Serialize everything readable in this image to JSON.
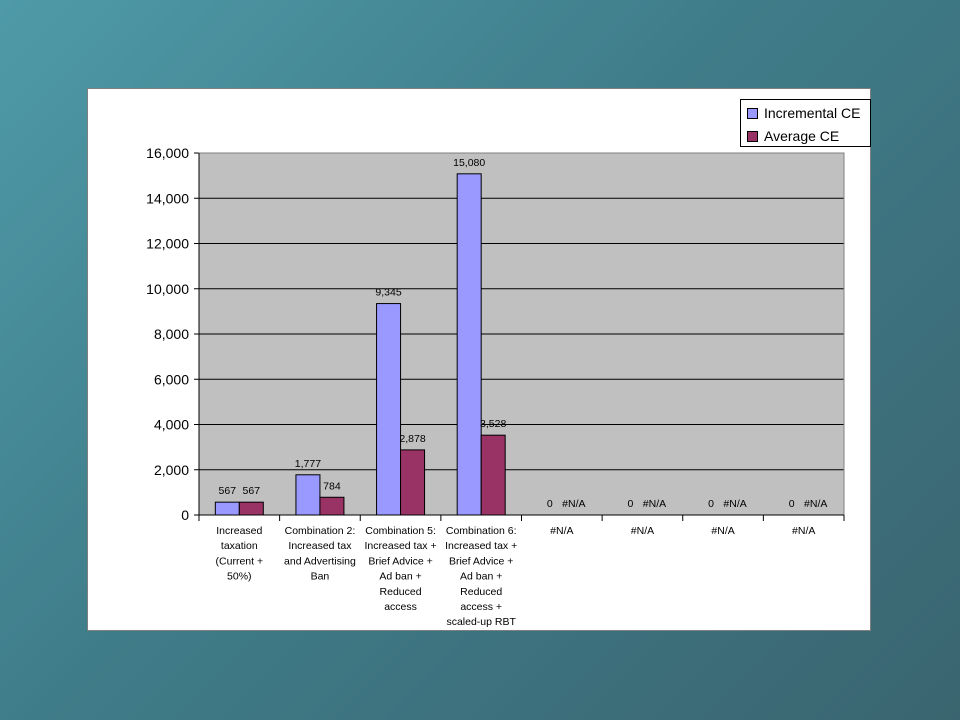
{
  "chart_data": {
    "type": "bar",
    "categories": [
      [
        "Increased",
        "taxation",
        "(Current +",
        "50%)"
      ],
      [
        "Combination 2:",
        "Increased tax",
        "and Advertising",
        "Ban"
      ],
      [
        "Combination 5:",
        "Increased tax +",
        "Brief Advice +",
        "Ad ban +",
        "Reduced",
        "access"
      ],
      [
        "Combination 6:",
        "Increased tax +",
        "Brief Advice +",
        "Ad ban +",
        "Reduced",
        "access +",
        "scaled-up RBT"
      ],
      [
        "#N/A"
      ],
      [
        "#N/A"
      ],
      [
        "#N/A"
      ],
      [
        "#N/A"
      ]
    ],
    "series": [
      {
        "name": "Incremental CE",
        "color": "#9999ff",
        "values": [
          567,
          1777,
          9345,
          15080,
          0,
          0,
          0,
          0
        ],
        "labels": [
          "567",
          "1,777",
          "9,345",
          "15,080",
          "0",
          "0",
          "0",
          "0"
        ]
      },
      {
        "name": "Average CE",
        "color": "#993366",
        "values": [
          567,
          784,
          2878,
          3528,
          null,
          null,
          null,
          null
        ],
        "labels": [
          "567",
          "784",
          "2,878",
          "3,528",
          "#N/A",
          "#N/A",
          "#N/A",
          "#N/A"
        ]
      }
    ],
    "ylim": [
      0,
      16000
    ],
    "yticks": [
      0,
      2000,
      4000,
      6000,
      8000,
      10000,
      12000,
      14000,
      16000
    ],
    "ytick_labels": [
      "0",
      "2,000",
      "4,000",
      "6,000",
      "8,000",
      "10,000",
      "12,000",
      "14,000",
      "16,000"
    ],
    "grid": true,
    "plot_background": "#c0c0c0",
    "legend_position": "top-right"
  }
}
